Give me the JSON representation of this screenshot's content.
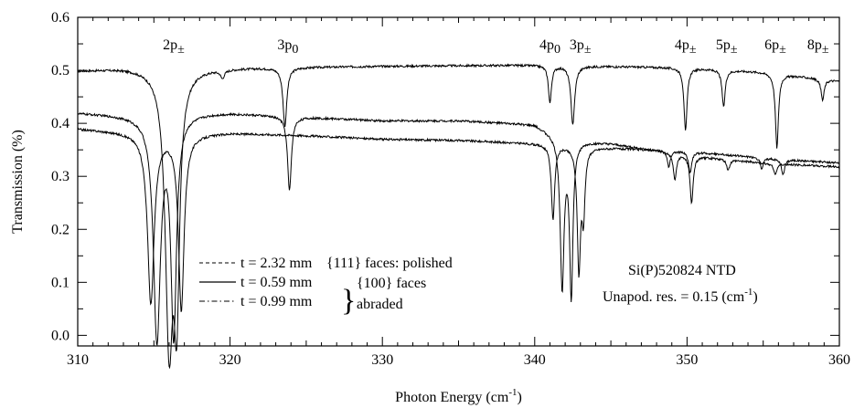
{
  "chart_data": {
    "type": "line",
    "xlabel": "Photon Energy (cm",
    "xlabel_sup": "-1",
    "xlabel_tail": ")",
    "ylabel": "Transmission (%)",
    "xlim": [
      310,
      360
    ],
    "ylim": [
      -0.02,
      0.6
    ],
    "x_ticks": [
      310,
      320,
      330,
      340,
      350,
      360
    ],
    "x_tick_labels": [
      "310",
      "320",
      "330",
      "340",
      "350",
      "360"
    ],
    "y_ticks": [
      0.0,
      0.1,
      0.2,
      0.3,
      0.4,
      0.5,
      0.6
    ],
    "y_tick_labels": [
      "0.0",
      "0.1",
      "0.2",
      "0.3",
      "0.4",
      "0.5",
      "0.6"
    ],
    "peak_labels": [
      {
        "main": "2p",
        "sub": "±",
        "x": 316.3
      },
      {
        "main": "3p",
        "sub": "0",
        "x": 323.8
      },
      {
        "main": "4p",
        "sub": "0",
        "x": 341.0
      },
      {
        "main": "3p",
        "sub": "±",
        "x": 343.0
      },
      {
        "main": "4p",
        "sub": "±",
        "x": 349.9
      },
      {
        "main": "5p",
        "sub": "±",
        "x": 352.6
      },
      {
        "main": "6p",
        "sub": "±",
        "x": 355.8
      },
      {
        "main": "8p",
        "sub": "±",
        "x": 358.6
      }
    ],
    "legend": {
      "entries": [
        {
          "label": "t = 2.32 mm",
          "style": "dashed"
        },
        {
          "label": "t = 0.59 mm",
          "style": "solid"
        },
        {
          "label": "t = 0.99 mm",
          "style": "dashdot"
        }
      ],
      "text_111": "{111} faces: polished",
      "text_100a": "{100} faces",
      "text_100b": "abraded",
      "brace": "}"
    },
    "annotations": {
      "sample": "Si(P)520824 NTD",
      "res_prefix": "Unapod. res. = 0.15 (cm",
      "res_sup": "-1",
      "res_suffix": ")"
    },
    "series": [
      {
        "style": "solid",
        "baseline": [
          [
            310,
            0.5
          ],
          [
            313,
            0.505
          ],
          [
            320,
            0.505
          ],
          [
            330,
            0.508
          ],
          [
            340,
            0.51
          ],
          [
            350,
            0.505
          ],
          [
            355,
            0.497
          ],
          [
            360,
            0.48
          ]
        ],
        "dips": [
          {
            "x": 316.0,
            "depth": 0.5,
            "w": 0.3
          },
          {
            "x": 316.5,
            "depth": 0.4,
            "w": 0.22
          },
          {
            "x": 319.5,
            "depth": 0.015,
            "w": 0.15
          },
          {
            "x": 323.6,
            "depth": 0.11,
            "w": 0.15
          },
          {
            "x": 341.0,
            "depth": 0.07,
            "w": 0.12
          },
          {
            "x": 342.5,
            "depth": 0.11,
            "w": 0.15
          },
          {
            "x": 349.9,
            "depth": 0.12,
            "w": 0.12
          },
          {
            "x": 352.4,
            "depth": 0.07,
            "w": 0.12
          },
          {
            "x": 355.9,
            "depth": 0.14,
            "w": 0.12
          },
          {
            "x": 358.9,
            "depth": 0.04,
            "w": 0.12
          }
        ]
      },
      {
        "style": "solid",
        "baseline": [
          [
            310,
            0.42
          ],
          [
            314,
            0.415
          ],
          [
            317,
            0.42
          ],
          [
            320,
            0.42
          ],
          [
            325,
            0.412
          ],
          [
            330,
            0.405
          ],
          [
            335,
            0.405
          ],
          [
            340,
            0.398
          ],
          [
            342,
            0.37
          ],
          [
            345,
            0.362
          ],
          [
            350,
            0.34
          ],
          [
            355,
            0.325
          ],
          [
            360,
            0.318
          ]
        ],
        "dips": [
          {
            "x": 315.2,
            "depth": 0.42,
            "w": 0.28
          },
          {
            "x": 316.3,
            "depth": 0.41,
            "w": 0.22
          },
          {
            "x": 323.9,
            "depth": 0.14,
            "w": 0.15
          },
          {
            "x": 341.8,
            "depth": 0.28,
            "w": 0.15
          },
          {
            "x": 342.4,
            "depth": 0.29,
            "w": 0.13
          },
          {
            "x": 349.2,
            "depth": 0.05,
            "w": 0.12
          },
          {
            "x": 350.3,
            "depth": 0.09,
            "w": 0.12
          },
          {
            "x": 352.7,
            "depth": 0.02,
            "w": 0.12
          },
          {
            "x": 355.8,
            "depth": 0.02,
            "w": 0.12
          }
        ]
      },
      {
        "style": "solid",
        "baseline": [
          [
            310,
            0.39
          ],
          [
            314,
            0.382
          ],
          [
            317,
            0.38
          ],
          [
            320,
            0.382
          ],
          [
            325,
            0.377
          ],
          [
            330,
            0.37
          ],
          [
            335,
            0.368
          ],
          [
            340,
            0.362
          ],
          [
            344,
            0.355
          ],
          [
            350,
            0.347
          ],
          [
            355,
            0.335
          ],
          [
            360,
            0.325
          ]
        ],
        "dips": [
          {
            "x": 314.8,
            "depth": 0.32,
            "w": 0.26
          },
          {
            "x": 316.8,
            "depth": 0.33,
            "w": 0.22
          },
          {
            "x": 341.2,
            "depth": 0.14,
            "w": 0.13
          },
          {
            "x": 342.9,
            "depth": 0.23,
            "w": 0.13
          },
          {
            "x": 343.2,
            "depth": 0.12,
            "w": 0.12
          },
          {
            "x": 348.8,
            "depth": 0.03,
            "w": 0.12
          },
          {
            "x": 350.2,
            "depth": 0.04,
            "w": 0.12
          },
          {
            "x": 354.9,
            "depth": 0.02,
            "w": 0.12
          },
          {
            "x": 356.3,
            "depth": 0.03,
            "w": 0.12
          }
        ]
      }
    ]
  }
}
